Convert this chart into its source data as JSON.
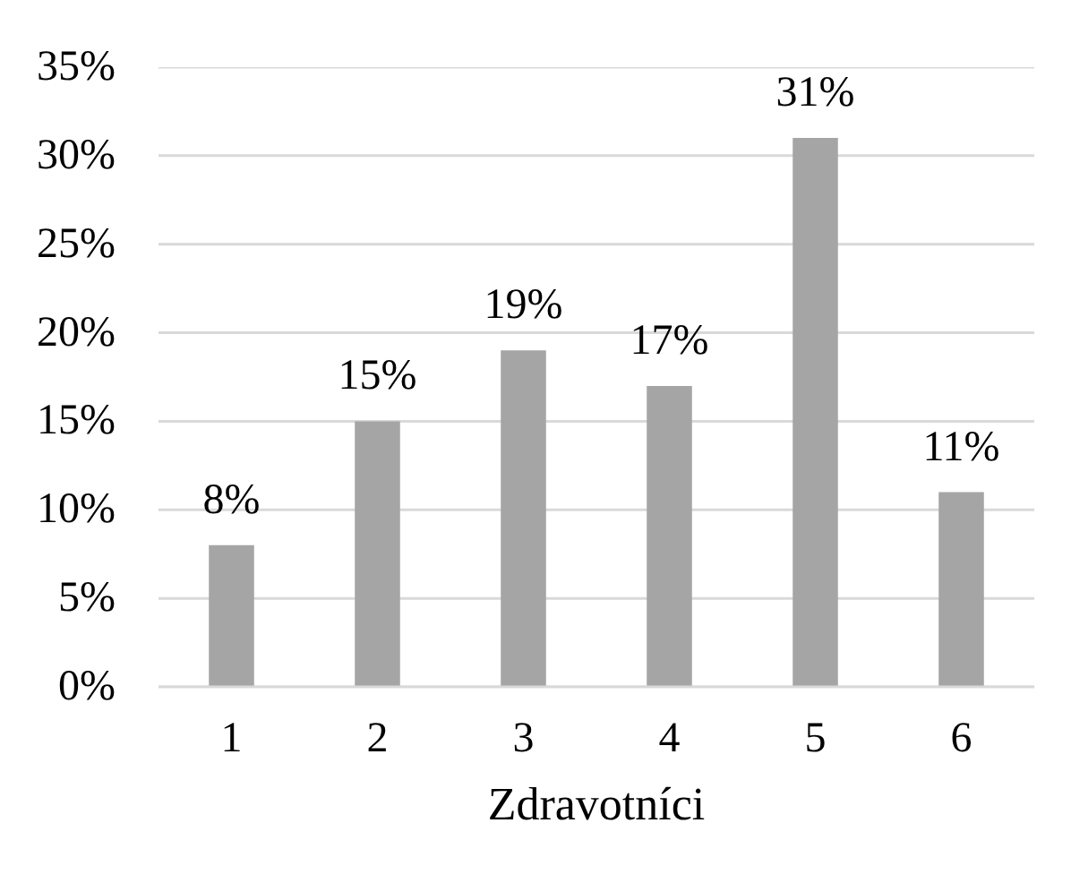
{
  "chart_data": {
    "type": "bar",
    "xlabel": "Zdravotníci",
    "categories": [
      "1",
      "2",
      "3",
      "4",
      "5",
      "6"
    ],
    "values": [
      8,
      15,
      19,
      17,
      31,
      11
    ],
    "value_labels": [
      "8%",
      "15%",
      "19%",
      "17%",
      "31%",
      "11%"
    ],
    "color": "#a5a5a5",
    "ylim": [
      0,
      35
    ],
    "yticks": [
      {
        "value": 0,
        "label": "0%"
      },
      {
        "value": 5,
        "label": "5%"
      },
      {
        "value": 10,
        "label": "10%"
      },
      {
        "value": 15,
        "label": "15%"
      },
      {
        "value": 20,
        "label": "20%"
      },
      {
        "value": 25,
        "label": "25%"
      },
      {
        "value": 30,
        "label": "30%"
      },
      {
        "value": 35,
        "label": "35%"
      }
    ],
    "grid": "y"
  }
}
